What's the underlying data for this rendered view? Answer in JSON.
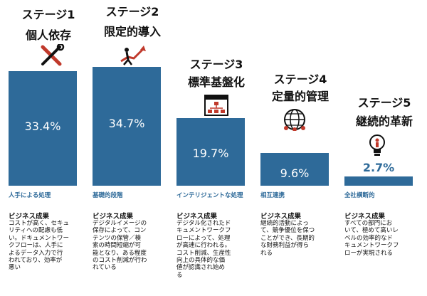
{
  "colors": {
    "bar": "#2e6a99",
    "value_inside": "#ffffff",
    "value_outside": "#2e6a99"
  },
  "chart_data": {
    "type": "bar",
    "categories": [
      "ステージ1 個人依存",
      "ステージ2 限定的導入",
      "ステージ3 標準基盤化",
      "ステージ4 定量的管理",
      "ステージ5 継続的革新"
    ],
    "values": [
      33.4,
      34.7,
      19.7,
      9.6,
      2.7
    ],
    "unit": "%",
    "ylim": [
      0,
      40
    ],
    "grid": false,
    "legend": "none",
    "value_labels": [
      "33.4%",
      "34.7%",
      "19.7%",
      "9.6%",
      "2.7%"
    ]
  },
  "stages": [
    {
      "stage": "ステージ1",
      "name": "個人依存",
      "icon": "tools-icon",
      "subtitle": "人手による処理",
      "result_heading": "ビジネス成果",
      "result_text": "コストが高く、セキュ\nリティへの配慮も低\nい。ドキュメントワー\nクフローは、人手に\nよるデータ入力で行\nわれており、効率が\n悪い"
    },
    {
      "stage": "ステージ2",
      "name": "限定的導入",
      "icon": "growth-push-icon",
      "subtitle": "基礎的段階",
      "result_heading": "ビジネス成果",
      "result_text": "デジタルイメージの\n保存によって、コン\nテンツの保管／検\n索の時間短縮が可\n能となり、ある程度\nのコスト削減が行わ\nれている"
    },
    {
      "stage": "ステージ3",
      "name": "標準基盤化",
      "icon": "workflow-window-icon",
      "subtitle": "インテリジェントな処理",
      "result_heading": "ビジネス成果",
      "result_text": "デジタル化されたド\nキュメントワークフ\nローによって、処理\nが高速に行われる。\nコスト削減、生産性\n向上の具体的な価\n値が認識され始め\nる"
    },
    {
      "stage": "ステージ4",
      "name": "定量的管理",
      "icon": "global-network-icon",
      "subtitle": "相互連携",
      "result_heading": "ビジネス成果",
      "result_text": "継続的活動によっ\nて、競争優位を保つ\nことができ、長期的\nな財務利益が得ら\nれる"
    },
    {
      "stage": "ステージ5",
      "name": "継続的革新",
      "icon": "lightbulb-person-icon",
      "subtitle": "全社横断的",
      "result_heading": "ビジネス成果",
      "result_text": "すべての部門にお\nいて、極めて高いレ\nベルの効率的なド\nキュメントワークフ\nローが実現される"
    }
  ]
}
